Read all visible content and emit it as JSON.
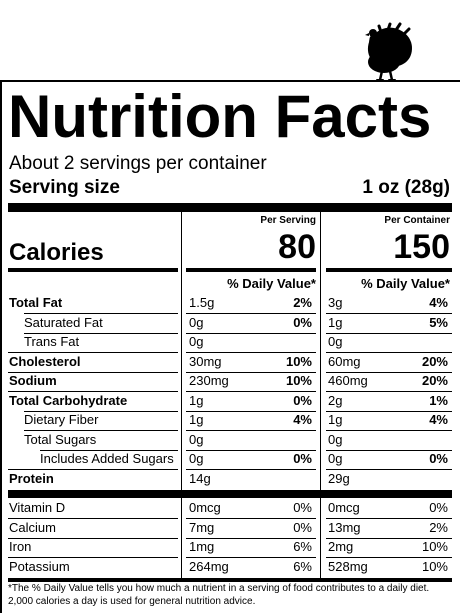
{
  "title": "Nutrition Facts",
  "servings_text": "About 2 servings per container",
  "serving_size": {
    "label": "Serving size",
    "value": "1 oz (28g)"
  },
  "headers": {
    "per_serving": "Per Serving",
    "per_container": "Per Container"
  },
  "calories": {
    "label": "Calories",
    "per_serving": "80",
    "per_container": "150"
  },
  "dv_header": "% Daily Value*",
  "nutrients": [
    {
      "name": "Total Fat",
      "bold": true,
      "indent": 0,
      "s_amt": "1.5g",
      "s_dv": "2%",
      "c_amt": "3g",
      "c_dv": "4%",
      "dv_bold": true
    },
    {
      "name": "Saturated Fat",
      "bold": false,
      "indent": 1,
      "s_amt": "0g",
      "s_dv": "0%",
      "c_amt": "1g",
      "c_dv": "5%",
      "dv_bold": true
    },
    {
      "name": "Trans Fat",
      "bold": false,
      "indent": 2,
      "s_amt": "0g",
      "s_dv": "",
      "c_amt": "0g",
      "c_dv": "",
      "dv_bold": true
    },
    {
      "name": "Cholesterol",
      "bold": true,
      "indent": 0,
      "s_amt": "30mg",
      "s_dv": "10%",
      "c_amt": "60mg",
      "c_dv": "20%",
      "dv_bold": true
    },
    {
      "name": "Sodium",
      "bold": true,
      "indent": 0,
      "s_amt": "230mg",
      "s_dv": "10%",
      "c_amt": "460mg",
      "c_dv": "20%",
      "dv_bold": true
    },
    {
      "name": "Total Carbohydrate",
      "bold": true,
      "indent": 0,
      "s_amt": "1g",
      "s_dv": "0%",
      "c_amt": "2g",
      "c_dv": "1%",
      "dv_bold": true
    },
    {
      "name": "Dietary Fiber",
      "bold": false,
      "indent": 1,
      "s_amt": "1g",
      "s_dv": "4%",
      "c_amt": "1g",
      "c_dv": "4%",
      "dv_bold": true
    },
    {
      "name": "Total Sugars",
      "bold": false,
      "indent": 1,
      "s_amt": "0g",
      "s_dv": "",
      "c_amt": "0g",
      "c_dv": "",
      "dv_bold": true
    },
    {
      "name": "Includes Added Sugars",
      "bold": false,
      "indent": 3,
      "s_amt": "0g",
      "s_dv": "0%",
      "c_amt": "0g",
      "c_dv": "0%",
      "dv_bold": true
    },
    {
      "name": "Protein",
      "bold": true,
      "indent": 0,
      "s_amt": "14g",
      "s_dv": "",
      "c_amt": "29g",
      "c_dv": "",
      "dv_bold": true
    }
  ],
  "vitamins": [
    {
      "name": "Vitamin D",
      "s_amt": "0mcg",
      "s_dv": "0%",
      "c_amt": "0mcg",
      "c_dv": "0%"
    },
    {
      "name": "Calcium",
      "s_amt": "7mg",
      "s_dv": "0%",
      "c_amt": "13mg",
      "c_dv": "2%"
    },
    {
      "name": "Iron",
      "s_amt": "1mg",
      "s_dv": "6%",
      "c_amt": "2mg",
      "c_dv": "10%"
    },
    {
      "name": "Potassium",
      "s_amt": "264mg",
      "s_dv": "6%",
      "c_amt": "528mg",
      "c_dv": "10%"
    }
  ],
  "footnote": "*The % Daily Value tells you how much a nutrient in a serving of food contributes to a daily diet. 2,000 calories a day is used for general nutrition advice.",
  "logo_icon": "turkey-icon",
  "colors": {
    "ink": "#000000",
    "paper": "#ffffff"
  }
}
